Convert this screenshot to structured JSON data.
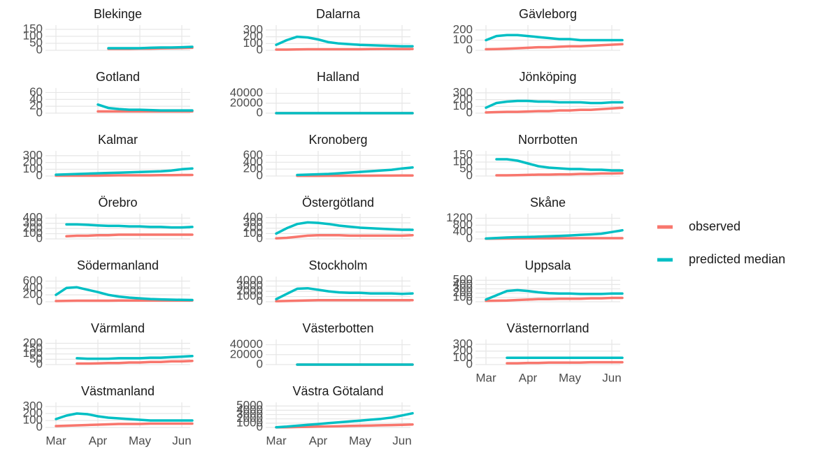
{
  "chart_data": {
    "type": "line",
    "categories": [
      "Mar",
      null,
      null,
      null,
      "Apr",
      null,
      null,
      null,
      "May",
      null,
      null,
      null,
      "Jun",
      null
    ],
    "series": [
      {
        "name": "observed",
        "color": "#F8766D"
      },
      {
        "name": "predicted median",
        "color": "#00BFC4"
      }
    ],
    "grid": true,
    "legend": "right",
    "panels": [
      {
        "title": "Blekinge",
        "ylim": [
          0,
          160
        ],
        "yticks": [
          0,
          50,
          100,
          150
        ],
        "values": [
          [
            null,
            null,
            null,
            null,
            null,
            10,
            10,
            10,
            12,
            12,
            14,
            15,
            16,
            18
          ],
          [
            null,
            null,
            null,
            null,
            null,
            15,
            15,
            15,
            15,
            18,
            20,
            20,
            22,
            25
          ]
        ]
      },
      {
        "title": "Dalarna",
        "ylim": [
          0,
          330
        ],
        "yticks": [
          0,
          100,
          200,
          300
        ],
        "values": [
          [
            10,
            10,
            12,
            15,
            15,
            15,
            15,
            15,
            15,
            18,
            20,
            20,
            20,
            20
          ],
          [
            80,
            150,
            200,
            190,
            160,
            120,
            100,
            90,
            80,
            75,
            70,
            65,
            60,
            60
          ]
        ]
      },
      {
        "title": "Gävleborg",
        "ylim": [
          0,
          220
        ],
        "yticks": [
          0,
          100,
          200
        ],
        "values": [
          [
            10,
            12,
            15,
            20,
            25,
            30,
            30,
            35,
            40,
            40,
            45,
            50,
            55,
            60
          ],
          [
            100,
            140,
            150,
            150,
            140,
            130,
            120,
            110,
            110,
            100,
            100,
            100,
            100,
            100
          ]
        ]
      },
      {
        "title": "Gotland",
        "ylim": [
          0,
          65
        ],
        "yticks": [
          0,
          20,
          40,
          60
        ],
        "values": [
          [
            null,
            null,
            null,
            null,
            5,
            5,
            5,
            5,
            5,
            5,
            5,
            5,
            5,
            5
          ],
          [
            null,
            null,
            null,
            null,
            25,
            15,
            12,
            10,
            10,
            9,
            8,
            8,
            8,
            8
          ]
        ]
      },
      {
        "title": "Halland",
        "ylim": [
          0,
          45000
        ],
        "yticks": [
          0,
          20000,
          40000
        ],
        "values": [
          [
            10,
            10,
            10,
            10,
            10,
            10,
            10,
            10,
            10,
            10,
            10,
            10,
            10,
            10
          ],
          [
            20,
            20,
            20,
            20,
            20,
            20,
            20,
            20,
            20,
            20,
            20,
            20,
            20,
            20
          ]
        ]
      },
      {
        "title": "Jönköping",
        "ylim": [
          0,
          330
        ],
        "yticks": [
          0,
          100,
          200,
          300
        ],
        "values": [
          [
            10,
            15,
            20,
            20,
            25,
            30,
            30,
            40,
            40,
            50,
            50,
            60,
            70,
            80
          ],
          [
            80,
            150,
            170,
            180,
            180,
            170,
            170,
            160,
            160,
            160,
            150,
            150,
            160,
            160
          ]
        ]
      },
      {
        "title": "Kalmar",
        "ylim": [
          0,
          330
        ],
        "yticks": [
          0,
          100,
          200,
          300
        ],
        "values": [
          [
            5,
            5,
            5,
            5,
            5,
            8,
            10,
            10,
            10,
            10,
            12,
            12,
            15,
            15
          ],
          [
            20,
            25,
            30,
            35,
            40,
            45,
            50,
            55,
            60,
            65,
            70,
            80,
            100,
            110
          ]
        ]
      },
      {
        "title": "Kronoberg",
        "ylim": [
          0,
          650
        ],
        "yticks": [
          0,
          200,
          400,
          600
        ],
        "values": [
          [
            null,
            null,
            5,
            5,
            5,
            8,
            8,
            10,
            10,
            10,
            12,
            12,
            15,
            15
          ],
          [
            null,
            null,
            30,
            40,
            50,
            60,
            80,
            100,
            120,
            140,
            160,
            180,
            220,
            250
          ]
        ]
      },
      {
        "title": "Norrbotten",
        "ylim": [
          0,
          160
        ],
        "yticks": [
          0,
          50,
          100,
          150
        ],
        "values": [
          [
            null,
            5,
            5,
            6,
            8,
            10,
            10,
            12,
            12,
            15,
            15,
            18,
            18,
            20
          ],
          [
            null,
            120,
            120,
            110,
            90,
            70,
            60,
            55,
            50,
            50,
            45,
            45,
            40,
            40
          ]
        ]
      },
      {
        "title": "Örebro",
        "ylim": [
          0,
          430
        ],
        "yticks": [
          0,
          100,
          200,
          300,
          400
        ],
        "values": [
          [
            null,
            50,
            60,
            60,
            70,
            70,
            80,
            80,
            80,
            80,
            80,
            80,
            80,
            80
          ],
          [
            null,
            280,
            280,
            270,
            260,
            250,
            250,
            240,
            240,
            230,
            230,
            220,
            220,
            230
          ]
        ]
      },
      {
        "title": "Östergötland",
        "ylim": [
          0,
          420
        ],
        "yticks": [
          0,
          100,
          200,
          300,
          400
        ],
        "values": [
          [
            10,
            20,
            40,
            60,
            70,
            70,
            70,
            60,
            60,
            60,
            60,
            60,
            60,
            70
          ],
          [
            100,
            200,
            280,
            310,
            300,
            280,
            250,
            230,
            210,
            200,
            190,
            180,
            170,
            170
          ]
        ]
      },
      {
        "title": "Skåne",
        "ylim": [
          0,
          1300
        ],
        "yticks": [
          0,
          400,
          800,
          1200
        ],
        "values": [
          [
            10,
            15,
            20,
            25,
            30,
            30,
            30,
            35,
            35,
            40,
            40,
            40,
            40,
            40
          ],
          [
            20,
            50,
            80,
            100,
            110,
            130,
            150,
            170,
            200,
            230,
            260,
            300,
            400,
            500
          ]
        ]
      },
      {
        "title": "Södermanland",
        "ylim": [
          0,
          650
        ],
        "yticks": [
          0,
          200,
          400,
          600
        ],
        "values": [
          [
            20,
            25,
            30,
            30,
            30,
            30,
            35,
            35,
            35,
            35,
            35,
            35,
            35,
            35
          ],
          [
            200,
            400,
            420,
            350,
            280,
            200,
            150,
            120,
            100,
            80,
            70,
            60,
            55,
            50
          ]
        ]
      },
      {
        "title": "Stockholm",
        "ylim": [
          0,
          4300
        ],
        "yticks": [
          0,
          1000,
          2000,
          3000,
          4000
        ],
        "values": [
          [
            100,
            150,
            200,
            250,
            300,
            300,
            300,
            300,
            300,
            300,
            300,
            300,
            300,
            300
          ],
          [
            500,
            1500,
            2500,
            2600,
            2300,
            2000,
            1800,
            1700,
            1700,
            1600,
            1600,
            1600,
            1500,
            1600
          ]
        ]
      },
      {
        "title": "Uppsala",
        "ylim": [
          0,
          520
        ],
        "yticks": [
          0,
          100,
          200,
          300,
          400,
          500
        ],
        "values": [
          [
            20,
            25,
            30,
            40,
            50,
            60,
            60,
            70,
            70,
            70,
            80,
            80,
            90,
            90
          ],
          [
            50,
            150,
            250,
            270,
            250,
            220,
            200,
            190,
            190,
            180,
            180,
            180,
            190,
            190
          ]
        ]
      },
      {
        "title": "Värmland",
        "ylim": [
          0,
          210
        ],
        "yticks": [
          0,
          50,
          100,
          150,
          200
        ],
        "values": [
          [
            null,
            null,
            10,
            10,
            12,
            15,
            15,
            20,
            20,
            25,
            25,
            30,
            30,
            35
          ],
          [
            null,
            null,
            60,
            55,
            55,
            55,
            60,
            60,
            60,
            65,
            65,
            70,
            75,
            80
          ]
        ]
      },
      {
        "title": "Västerbotten",
        "ylim": [
          0,
          45000
        ],
        "yticks": [
          0,
          20000,
          40000
        ],
        "values": [
          [
            null,
            null,
            10,
            10,
            10,
            10,
            10,
            10,
            10,
            10,
            10,
            10,
            10,
            10
          ],
          [
            null,
            null,
            20,
            20,
            20,
            20,
            20,
            20,
            20,
            20,
            20,
            20,
            20,
            20
          ]
        ]
      },
      {
        "title": "Västernorrland",
        "ylim": [
          0,
          330
        ],
        "yticks": [
          0,
          100,
          200,
          300
        ],
        "values": [
          [
            null,
            null,
            20,
            20,
            25,
            25,
            30,
            30,
            30,
            30,
            35,
            35,
            35,
            35
          ],
          [
            null,
            null,
            100,
            100,
            100,
            100,
            100,
            100,
            100,
            100,
            100,
            100,
            100,
            100
          ]
        ]
      },
      {
        "title": "Västmanland",
        "ylim": [
          0,
          320
        ],
        "yticks": [
          0,
          100,
          200,
          300
        ],
        "values": [
          [
            20,
            25,
            30,
            35,
            40,
            45,
            50,
            50,
            50,
            55,
            55,
            55,
            55,
            55
          ],
          [
            120,
            170,
            200,
            190,
            160,
            140,
            130,
            120,
            110,
            100,
            100,
            100,
            100,
            100
          ]
        ]
      },
      {
        "title": "Västra Götaland",
        "ylim": [
          0,
          5200
        ],
        "yticks": [
          0,
          1000,
          2000,
          3000,
          4000,
          5000
        ],
        "values": [
          [
            20,
            50,
            100,
            150,
            200,
            250,
            300,
            350,
            400,
            450,
            500,
            550,
            600,
            700
          ],
          [
            50,
            200,
            400,
            600,
            800,
            1000,
            1200,
            1400,
            1600,
            1800,
            2000,
            2300,
            2800,
            3300
          ]
        ]
      }
    ]
  }
}
